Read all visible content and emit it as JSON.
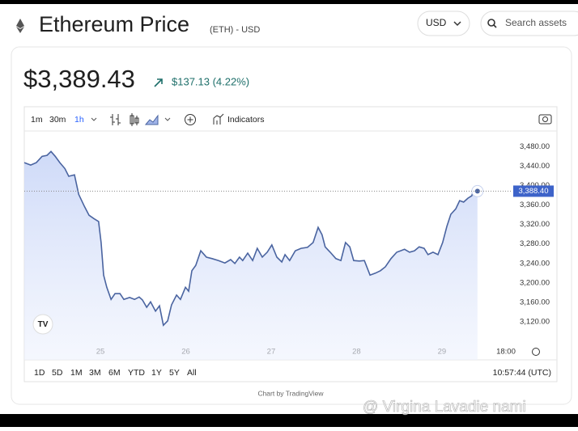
{
  "header": {
    "title": "Ethereum Price",
    "subtitle": "(ETH) - USD",
    "currency": "USD",
    "search_placeholder": "Search assets"
  },
  "price": {
    "current": "$3,389.43",
    "change": "$137.13 (4.22%)"
  },
  "toolbar": {
    "intervals": [
      "1m",
      "30m",
      "1h"
    ],
    "indicators": "Indicators"
  },
  "ranges": [
    "1D",
    "5D",
    "1M",
    "3M",
    "6M",
    "YTD",
    "1Y",
    "5Y",
    "All"
  ],
  "clock": "10:57:44 (UTC)",
  "credit": "Chart by TradingView",
  "watermark": "@ Virgina Lavadie nami",
  "chart_data": {
    "type": "line",
    "color": "#4a64a0",
    "area": true,
    "grid": false,
    "x": [
      -21.4,
      -19.6,
      -18.0,
      -16.4,
      -15.0,
      -13.9,
      -12.7,
      -11.4,
      -10.0,
      -8.9,
      -7.3,
      -6.1,
      -4.5,
      -3.2,
      -1.8,
      -0.5,
      0.2,
      0.9,
      1.8,
      3.0,
      4.1,
      5.5,
      6.6,
      8.2,
      9.6,
      10.9,
      11.8,
      13.0,
      14.1,
      15.5,
      16.6,
      17.7,
      18.9,
      20.0,
      21.4,
      22.5,
      23.9,
      24.8,
      25.7,
      26.8,
      28.2,
      29.8,
      31.4,
      33.2,
      35.0,
      36.6,
      37.8,
      39.1,
      40.0,
      41.4,
      42.8,
      44.1,
      45.5,
      46.9,
      48.2,
      49.6,
      51.0,
      51.9,
      53.2,
      54.8,
      56.4,
      58.2,
      59.8,
      61.2,
      62.3,
      63.2,
      64.6,
      66.2,
      67.6,
      68.9,
      70.1,
      71.2,
      72.8,
      74.2,
      75.8,
      77.3,
      78.7,
      80.1,
      81.7,
      83.3,
      84.4,
      85.5,
      86.9,
      88.3,
      89.6,
      91.0,
      92.1,
      93.5,
      94.9,
      96.2,
      97.4,
      98.5,
      99.9,
      101.0,
      102.1,
      103.3,
      104.4,
      105.1,
      106.0
    ],
    "values": [
      3447,
      3442,
      3447,
      3460,
      3462,
      3470,
      3460,
      3447,
      3435,
      3419,
      3422,
      3382,
      3357,
      3339,
      3332,
      3326,
      3283,
      3216,
      3191,
      3166,
      3178,
      3178,
      3166,
      3170,
      3166,
      3171,
      3165,
      3150,
      3161,
      3142,
      3153,
      3113,
      3122,
      3155,
      3175,
      3166,
      3191,
      3183,
      3225,
      3236,
      3266,
      3253,
      3250,
      3246,
      3241,
      3248,
      3240,
      3253,
      3246,
      3261,
      3246,
      3271,
      3253,
      3263,
      3278,
      3253,
      3243,
      3258,
      3246,
      3266,
      3271,
      3273,
      3283,
      3314,
      3299,
      3274,
      3263,
      3250,
      3246,
      3283,
      3274,
      3246,
      3245,
      3246,
      3216,
      3220,
      3225,
      3233,
      3250,
      3263,
      3266,
      3269,
      3263,
      3266,
      3274,
      3271,
      3258,
      3263,
      3258,
      3283,
      3316,
      3341,
      3352,
      3369,
      3366,
      3374,
      3379,
      3396,
      3388.4
    ],
    "xlim": [
      -21.4,
      115.6
    ],
    "ylim": [
      3042,
      3512
    ],
    "xticks": [
      {
        "value": 0,
        "label": "25"
      },
      {
        "value": 24,
        "label": "26"
      },
      {
        "value": 48,
        "label": "27"
      },
      {
        "value": 72,
        "label": "28"
      },
      {
        "value": 96,
        "label": "29"
      },
      {
        "value": 114,
        "label": "18:00"
      }
    ],
    "yticks": [
      {
        "value": 3120,
        "label": "3,120.00"
      },
      {
        "value": 3160,
        "label": "3,160.00"
      },
      {
        "value": 3200,
        "label": "3,200.00"
      },
      {
        "value": 3240,
        "label": "3,240.00"
      },
      {
        "value": 3280,
        "label": "3,280.00"
      },
      {
        "value": 3320,
        "label": "3,320.00"
      },
      {
        "value": 3360,
        "label": "3,360.00"
      },
      {
        "value": 3400,
        "label": "3,400.00"
      },
      {
        "value": 3440,
        "label": "3,440.00"
      },
      {
        "value": 3480,
        "label": "3,480.00"
      }
    ],
    "last_price": {
      "value": 3388.4,
      "label": "3,388.40"
    }
  }
}
